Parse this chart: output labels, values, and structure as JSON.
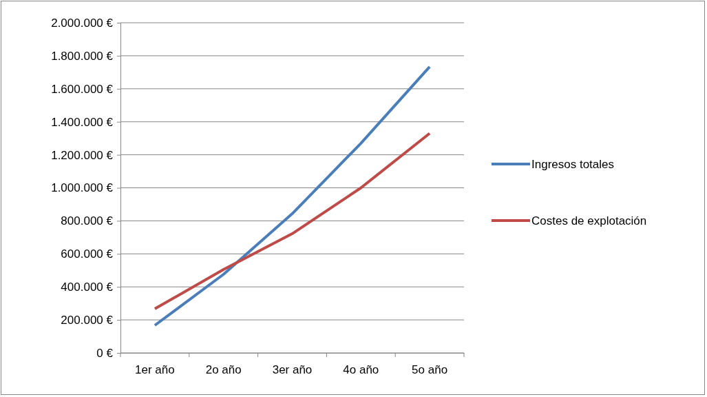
{
  "chart_data": {
    "type": "line",
    "categories": [
      "1er año",
      "2o año",
      "3er año",
      "4o año",
      "5o año"
    ],
    "series": [
      {
        "name": "Ingresos totales",
        "color": "#4a7ebb",
        "values": [
          167000,
          476000,
          843000,
          1270000,
          1733000
        ]
      },
      {
        "name": "Costes de explotación",
        "color": "#be4b48",
        "values": [
          267000,
          505000,
          722000,
          1000000,
          1330000
        ]
      }
    ],
    "ylim": [
      0,
      2000000
    ],
    "yticks": [
      {
        "value": 0,
        "label": "0 €"
      },
      {
        "value": 200000,
        "label": "200.000 €"
      },
      {
        "value": 400000,
        "label": "400.000 €"
      },
      {
        "value": 600000,
        "label": "600.000 €"
      },
      {
        "value": 800000,
        "label": "800.000 €"
      },
      {
        "value": 1000000,
        "label": "1.000.000 €"
      },
      {
        "value": 1200000,
        "label": "1.200.000 €"
      },
      {
        "value": 1400000,
        "label": "1.400.000 €"
      },
      {
        "value": 1600000,
        "label": "1.600.000 €"
      },
      {
        "value": 1800000,
        "label": "1.800.000 €"
      },
      {
        "value": 2000000,
        "label": "2.000.000 €"
      }
    ],
    "grid": "y",
    "legend": "right",
    "marker": "none",
    "line_style": "solid"
  }
}
